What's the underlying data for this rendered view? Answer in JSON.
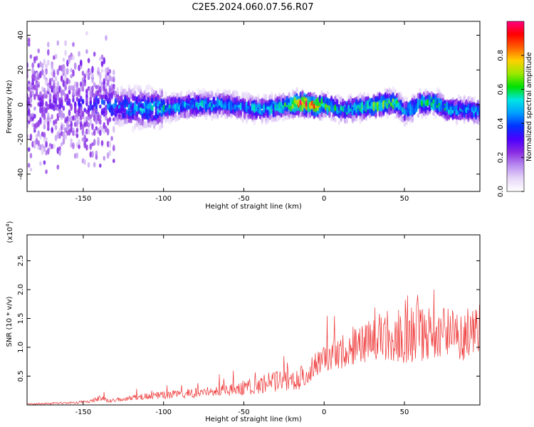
{
  "title": "C2E5.2024.060.07.56.R07",
  "colors": {
    "snr_line": "#ee3333",
    "axis": "#000000",
    "colormap": [
      "#ffffff",
      "#e6d6f8",
      "#b98cf0",
      "#8a2be2",
      "#4b00ff",
      "#0033ff",
      "#00a0ff",
      "#00e5e5",
      "#00e000",
      "#9be800",
      "#ffd000",
      "#ff6000",
      "#ff0000",
      "#ff0080"
    ]
  },
  "chart_data": [
    {
      "type": "heatmap",
      "title": "",
      "xlabel": "Height of straight line (km)",
      "ylabel": "Frequency (Hz)",
      "xlim": [
        -185,
        97
      ],
      "ylim": [
        -50,
        48
      ],
      "xticks": [
        -150,
        -100,
        -50,
        0,
        50
      ],
      "xtick_labels": [
        "-150",
        "-100",
        "-50",
        "0",
        "50"
      ],
      "yticks": [
        -40,
        -20,
        0,
        20,
        40
      ],
      "ytick_labels": [
        "-40",
        "-20",
        "0",
        "20",
        "40"
      ],
      "colorbar": {
        "label": "Normalized spectral amplitude",
        "range": [
          0,
          1
        ],
        "ticks": [
          0.0,
          0.2,
          0.4,
          0.6,
          0.8
        ],
        "tick_labels": [
          "0.0",
          "0.2",
          "0.4",
          "0.6",
          "0.8"
        ]
      },
      "ridge": {
        "x": [
          -185,
          -160,
          -140,
          -120,
          -100,
          -80,
          -60,
          -40,
          -25,
          -15,
          -5,
          0,
          10,
          20,
          30,
          40,
          45,
          50,
          55,
          60,
          70,
          75,
          80,
          90,
          97
        ],
        "freq": [
          0,
          0,
          0,
          -2,
          -2,
          0,
          0,
          -3,
          -1,
          1,
          -1,
          0,
          -3,
          -2,
          -1,
          1,
          1,
          -4,
          -2,
          1,
          1,
          -2,
          -3,
          -3,
          -4
        ],
        "peak_amplitude": [
          0.25,
          0.3,
          0.4,
          0.5,
          0.55,
          0.55,
          0.5,
          0.55,
          0.6,
          0.95,
          0.9,
          0.7,
          0.55,
          0.6,
          0.65,
          0.7,
          0.65,
          0.5,
          0.55,
          0.6,
          0.65,
          0.6,
          0.55,
          0.5,
          0.5
        ]
      }
    },
    {
      "type": "line",
      "title": "",
      "xlabel": "Height of straight line (km)",
      "ylabel": "SNR (10 * v/v)",
      "y_multiplier": "(x10",
      "y_multiplier_exp": "4",
      "y_multiplier_close": ")",
      "xlim": [
        -185,
        97
      ],
      "ylim": [
        0,
        2.95
      ],
      "xticks": [
        -150,
        -100,
        -50,
        0,
        50
      ],
      "xtick_labels": [
        "-150",
        "-100",
        "-50",
        "0",
        "50"
      ],
      "yticks": [
        0.5,
        1.0,
        1.5,
        2.0,
        2.5
      ],
      "ytick_labels": [
        "0.5",
        "1.0",
        "1.5",
        "2.0",
        "2.5"
      ],
      "series": [
        {
          "name": "SNR",
          "x": [
            -185,
            -175,
            -165,
            -155,
            -145,
            -140,
            -135,
            -125,
            -115,
            -105,
            -95,
            -85,
            -75,
            -65,
            -55,
            -45,
            -35,
            -25,
            -15,
            -10,
            -5,
            0,
            5,
            10,
            15,
            20,
            25,
            30,
            35,
            40,
            45,
            50,
            55,
            60,
            65,
            70,
            75,
            80,
            85,
            90,
            97
          ],
          "y": [
            0.02,
            0.02,
            0.03,
            0.04,
            0.07,
            0.12,
            0.08,
            0.1,
            0.14,
            0.16,
            0.18,
            0.2,
            0.22,
            0.25,
            0.28,
            0.32,
            0.38,
            0.45,
            0.48,
            0.5,
            0.75,
            0.82,
            0.85,
            0.9,
            1.0,
            1.05,
            1.1,
            1.15,
            1.2,
            1.2,
            1.25,
            1.3,
            1.35,
            1.3,
            1.3,
            1.25,
            1.25,
            1.2,
            1.2,
            1.25,
            1.3
          ],
          "noise": [
            0.01,
            0.015,
            0.02,
            0.02,
            0.03,
            0.05,
            0.04,
            0.04,
            0.05,
            0.06,
            0.07,
            0.08,
            0.09,
            0.1,
            0.12,
            0.15,
            0.18,
            0.2,
            0.22,
            0.2,
            0.25,
            0.22,
            0.25,
            0.3,
            0.32,
            0.35,
            0.38,
            0.4,
            0.42,
            0.45,
            0.5,
            0.6,
            0.65,
            0.6,
            0.5,
            0.45,
            0.45,
            0.45,
            0.45,
            0.45,
            0.45
          ]
        }
      ]
    }
  ]
}
